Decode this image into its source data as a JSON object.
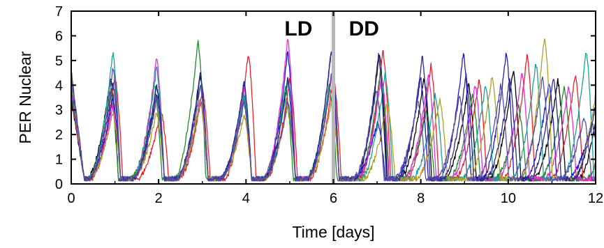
{
  "chart_data": {
    "type": "line",
    "xlabel": "Time [days]",
    "ylabel": "PER Nuclear",
    "xlim": [
      0,
      12
    ],
    "ylim": [
      0,
      7
    ],
    "xticks": [
      "0",
      "2",
      "4",
      "6",
      "8",
      "10",
      "12"
    ],
    "yticks": [
      "0",
      "1",
      "2",
      "3",
      "4",
      "5",
      "6",
      "7"
    ],
    "grid": false,
    "legend": "none",
    "annotations": [
      {
        "label": "LD",
        "x": 5.2,
        "y": 6.3
      },
      {
        "label": "DD",
        "x": 6.7,
        "y": 6.3
      }
    ],
    "divider_x": 6,
    "divider_color": "#b8b8b8",
    "trough": 0.2,
    "series": [
      {
        "color": "#000000",
        "ld_peak_times": [
          0.9,
          1.95,
          2.95,
          3.95,
          4.95,
          5.95
        ],
        "ld_peaks": [
          4.3,
          4.0,
          4.4,
          4.0,
          4.2,
          4.3
        ],
        "dd_period": 1.02,
        "dd_peaks": [
          5.3,
          4.3,
          4.0,
          4.6,
          4.2,
          4.3
        ]
      },
      {
        "color": "#e8202a",
        "ld_peak_times": [
          1.0,
          2.05,
          3.0,
          4.05,
          5.0,
          6.0
        ],
        "ld_peaks": [
          4.4,
          3.0,
          3.8,
          5.3,
          4.3,
          4.4
        ],
        "dd_period": 1.1,
        "dd_peaks": [
          5.4,
          4.8,
          4.2,
          5.2,
          4.4,
          5.0
        ]
      },
      {
        "color": "#1f8a2a",
        "ld_peak_times": [
          0.9,
          1.9,
          2.9,
          3.95,
          4.9,
          5.9
        ],
        "ld_peaks": [
          3.7,
          4.0,
          5.8,
          3.4,
          3.9,
          4.0
        ],
        "dd_period": 1.05,
        "dd_peaks": [
          4.6,
          3.0,
          3.6,
          3.2,
          3.9,
          3.6
        ]
      },
      {
        "color": "#1a1ac8",
        "ld_peak_times": [
          0.95,
          1.95,
          2.95,
          3.95,
          4.95,
          5.95
        ],
        "ld_peaks": [
          3.5,
          3.6,
          3.4,
          3.6,
          5.3,
          5.4
        ],
        "dd_period": 0.98,
        "dd_peaks": [
          2.5,
          4.3,
          5.3,
          5.3,
          4.1,
          2.5
        ]
      },
      {
        "color": "#ea2ae0",
        "ld_peak_times": [
          0.95,
          1.95,
          2.95,
          3.95,
          4.95,
          5.95
        ],
        "ld_peaks": [
          3.2,
          5.1,
          3.4,
          3.9,
          5.9,
          4.3
        ],
        "dd_period": 1.07,
        "dd_peaks": [
          4.4,
          4.4,
          4.0,
          4.5,
          3.9,
          3.5
        ]
      },
      {
        "color": "#1aa09a",
        "ld_peak_times": [
          0.95,
          1.95,
          2.95,
          3.95,
          4.95,
          5.95
        ],
        "ld_peaks": [
          5.3,
          4.7,
          3.9,
          3.6,
          4.1,
          4.4
        ],
        "dd_period": 1.15,
        "dd_peaks": [
          4.5,
          3.6,
          4.0,
          4.9,
          5.4,
          4.0
        ]
      },
      {
        "color": "#b0a020",
        "ld_peak_times": [
          0.95,
          1.95,
          2.95,
          3.95,
          4.95,
          5.95
        ],
        "ld_peaks": [
          2.9,
          2.9,
          3.4,
          2.8,
          3.1,
          3.3
        ],
        "dd_period": 1.2,
        "dd_peaks": [
          3.3,
          3.4,
          4.4,
          6.0,
          4.0,
          3.6
        ]
      },
      {
        "color": "#2a2a90",
        "ld_peak_times": [
          0.95,
          1.95,
          2.95,
          3.95,
          4.95,
          5.95
        ],
        "ld_peaks": [
          4.1,
          4.0,
          4.5,
          4.1,
          4.3,
          5.4
        ],
        "dd_period": 1.0,
        "dd_peaks": [
          5.2,
          5.2,
          4.4,
          4.2,
          4.3,
          3.6
        ]
      },
      {
        "color": "#5a4aa8",
        "ld_peak_times": [
          0.95,
          1.95,
          2.95,
          3.95,
          4.95,
          5.95
        ],
        "ld_peaks": [
          4.7,
          3.5,
          4.0,
          3.3,
          3.3,
          4.4
        ],
        "dd_period": 0.95,
        "dd_peaks": [
          3.8,
          3.4,
          3.5,
          4.0,
          4.3,
          2.7
        ]
      }
    ]
  }
}
